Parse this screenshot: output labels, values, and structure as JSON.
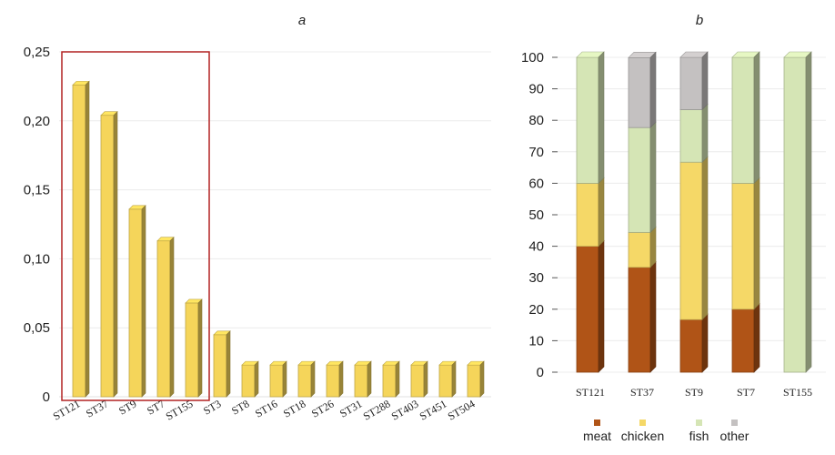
{
  "chart_data": [
    {
      "type": "bar",
      "title": "a",
      "categories": [
        "ST121",
        "ST37",
        "ST9",
        "ST7",
        "ST155",
        "ST3",
        "ST8",
        "ST16",
        "ST18",
        "ST26",
        "ST31",
        "ST288",
        "ST403",
        "ST451",
        "ST504"
      ],
      "values": [
        0.226,
        0.204,
        0.136,
        0.113,
        0.068,
        0.045,
        0.023,
        0.023,
        0.023,
        0.023,
        0.023,
        0.023,
        0.023,
        0.023,
        0.023
      ],
      "ylim": [
        0,
        0.25
      ],
      "yticks": [
        "0",
        "0,05",
        "0,10",
        "0,15",
        "0,20",
        "0,25"
      ],
      "ytick_values": [
        0,
        0.05,
        0.1,
        0.15,
        0.2,
        0.25
      ],
      "highlight_first_n": 5,
      "bar_color": "#f5d55a",
      "highlight_color": "#b22222"
    },
    {
      "type": "bar",
      "stacked": true,
      "title": "b",
      "categories": [
        "ST121",
        "ST37",
        "ST9",
        "ST7",
        "ST155"
      ],
      "ylim": [
        0,
        100
      ],
      "yticks": [
        "0",
        "10",
        "20",
        "30",
        "40",
        "50",
        "60",
        "70",
        "80",
        "90",
        "100"
      ],
      "ytick_values": [
        0,
        10,
        20,
        30,
        40,
        50,
        60,
        70,
        80,
        90,
        100
      ],
      "series": [
        {
          "name": "meat",
          "color": "#b05417",
          "values": [
            40,
            33.3,
            16.7,
            20,
            0
          ]
        },
        {
          "name": "chicken",
          "color": "#f5d867",
          "values": [
            20,
            11.1,
            50,
            40,
            0
          ]
        },
        {
          "name": "fish",
          "color": "#d5e5b5",
          "values": [
            40,
            33.3,
            16.7,
            40,
            100
          ]
        },
        {
          "name": "other",
          "color": "#c4c1c1",
          "values": [
            0,
            22.2,
            16.6,
            0,
            0
          ]
        }
      ]
    }
  ]
}
